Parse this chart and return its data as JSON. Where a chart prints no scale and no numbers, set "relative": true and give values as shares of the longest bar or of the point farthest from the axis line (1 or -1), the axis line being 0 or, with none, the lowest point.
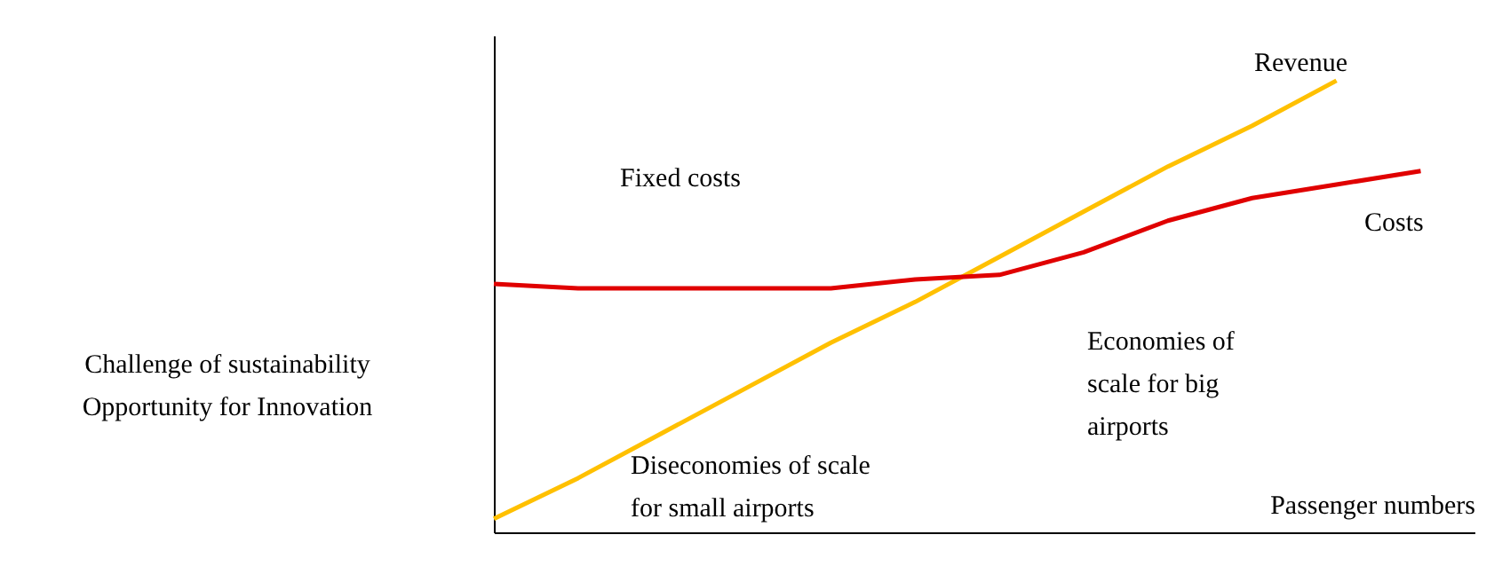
{
  "chart_data": {
    "type": "line",
    "relative": true,
    "xlabel": "Passenger numbers",
    "categories": [
      null,
      null,
      null,
      null,
      null,
      null,
      null,
      null,
      null,
      null,
      null,
      null
    ],
    "series": [
      {
        "name": "Revenue",
        "color": "#ffc000",
        "values": [
          0.03,
          0.12,
          0.22,
          0.32,
          0.42,
          0.51,
          0.61,
          0.71,
          0.81,
          0.9,
          1.0,
          null
        ]
      },
      {
        "name": "Costs",
        "color": "#e00000",
        "values": [
          0.55,
          0.54,
          0.54,
          0.54,
          0.54,
          0.56,
          0.57,
          0.62,
          0.69,
          0.74,
          0.77,
          0.8
        ]
      }
    ],
    "annotations": [
      "Fixed costs",
      "Challenge of sustainability\nOpportunity for Innovation",
      "Diseconomies of scale\nfor small airports",
      "Economies of\nscale for big\nairports"
    ],
    "legend": false,
    "grid": false,
    "marker": "none",
    "line_style": "solid"
  }
}
